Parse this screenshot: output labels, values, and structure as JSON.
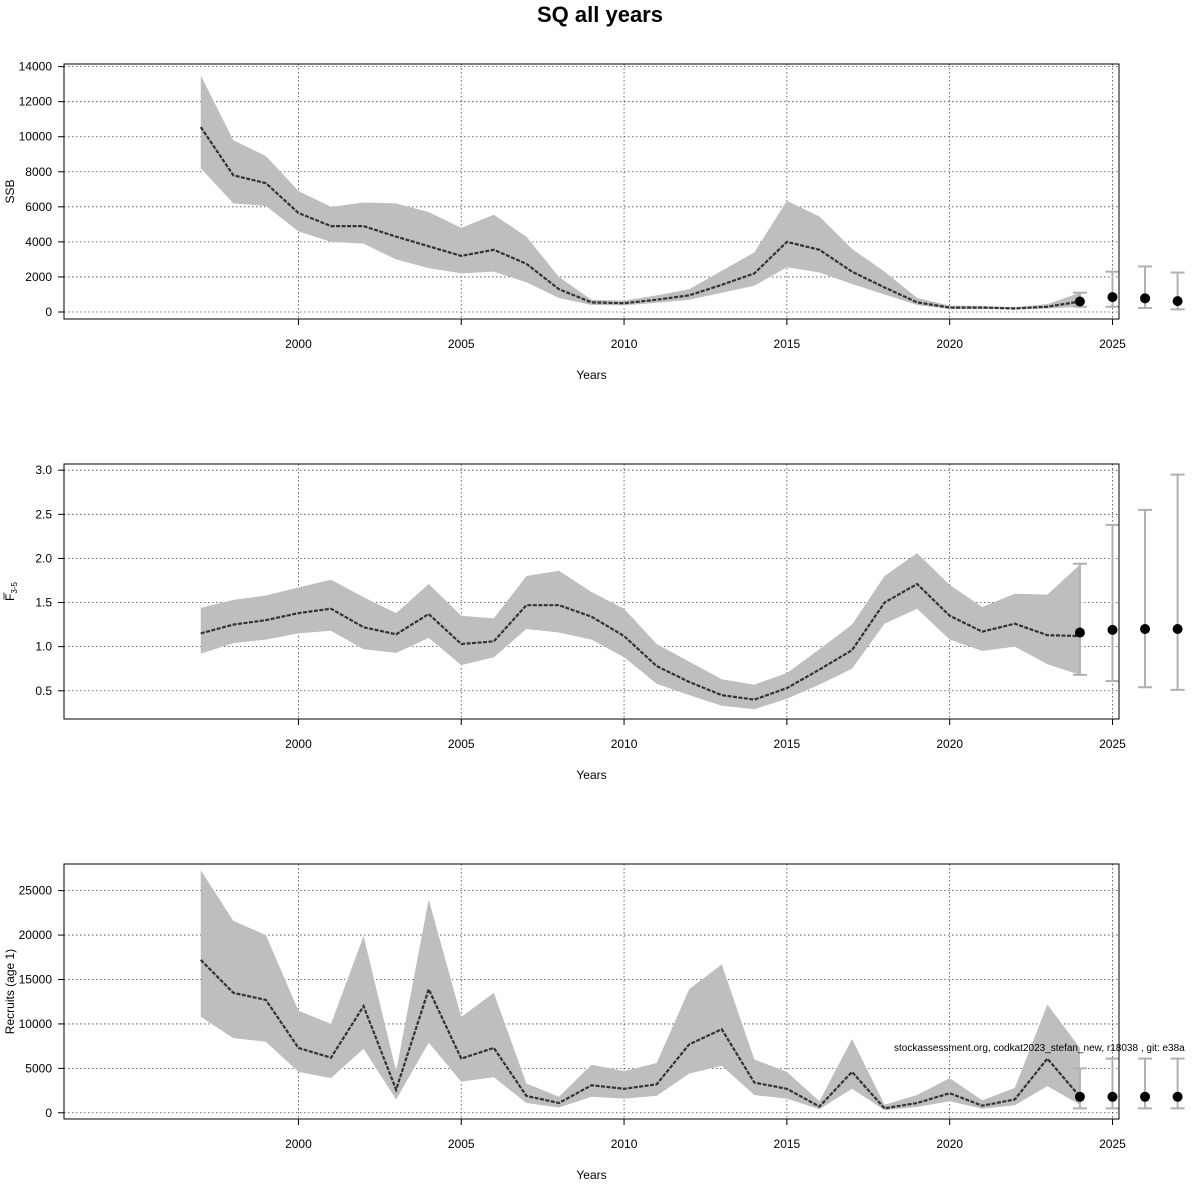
{
  "title": "SQ all years",
  "watermark": "stockassessment.org, codkat2023_stefan_new, r18038 , git: e38a",
  "colors": {
    "band": "#bebebe",
    "line": "#333333",
    "forecast_bar": "#b0b0b0",
    "grid": "#444444",
    "point": "#000000"
  },
  "chart_data": [
    {
      "type": "line",
      "ylabel": "SSB",
      "xlabel": "Years",
      "xlim": [
        1992.8,
        2025.2
      ],
      "ylim": [
        -400,
        14150
      ],
      "x_ticks": [
        2000,
        2005,
        2010,
        2015,
        2020,
        2025
      ],
      "y_ticks": [
        0,
        2000,
        4000,
        6000,
        8000,
        10000,
        12000,
        14000
      ],
      "y_tick_labels": [
        "0",
        "2000",
        "4000",
        "6000",
        "8000",
        "10000",
        "12000",
        "14000"
      ],
      "grid": true,
      "x": [
        1997,
        1998,
        1999,
        2000,
        2001,
        2002,
        2003,
        2004,
        2005,
        2006,
        2007,
        2008,
        2009,
        2010,
        2011,
        2012,
        2013,
        2014,
        2015,
        2016,
        2017,
        2018,
        2019,
        2020,
        2021,
        2022,
        2023,
        2024
      ],
      "estimate": [
        10550,
        7800,
        7350,
        5650,
        4900,
        4900,
        4300,
        3750,
        3200,
        3550,
        2750,
        1300,
        550,
        500,
        700,
        950,
        1550,
        2200,
        4000,
        3550,
        2300,
        1400,
        550,
        250,
        250,
        200,
        300,
        600
      ],
      "lower": [
        8200,
        6200,
        6050,
        4600,
        4000,
        3900,
        3000,
        2500,
        2200,
        2300,
        1700,
        800,
        400,
        380,
        530,
        700,
        1100,
        1500,
        2550,
        2250,
        1600,
        1000,
        400,
        170,
        180,
        150,
        200,
        300
      ],
      "upper": [
        13500,
        9800,
        8900,
        6900,
        6000,
        6250,
        6200,
        5700,
        4800,
        5550,
        4300,
        2000,
        700,
        650,
        950,
        1300,
        2350,
        3400,
        6350,
        5450,
        3600,
        2300,
        800,
        360,
        350,
        280,
        450,
        1100
      ],
      "forecast": [
        {
          "year": 2024,
          "value": 600,
          "low": 300,
          "high": 1100
        },
        {
          "year": 2025,
          "value": 850,
          "low": 300,
          "high": 2300
        },
        {
          "year": 2026,
          "value": 780,
          "low": 230,
          "high": 2600
        },
        {
          "year": 2027,
          "value": 620,
          "low": 150,
          "high": 2250
        }
      ]
    },
    {
      "type": "line",
      "ylabel_main": "F",
      "ylabel_sub": "3-5",
      "xlabel": "Years",
      "xlim": [
        1992.8,
        2025.2
      ],
      "ylim": [
        0.18,
        3.07
      ],
      "x_ticks": [
        2000,
        2005,
        2010,
        2015,
        2020,
        2025
      ],
      "y_ticks": [
        0.5,
        1.0,
        1.5,
        2.0,
        2.5,
        3.0
      ],
      "y_tick_labels": [
        "0.5",
        "1.0",
        "1.5",
        "2.0",
        "2.5",
        "3.0"
      ],
      "grid": true,
      "x": [
        1997,
        1998,
        1999,
        2000,
        2001,
        2002,
        2003,
        2004,
        2005,
        2006,
        2007,
        2008,
        2009,
        2010,
        2011,
        2012,
        2013,
        2014,
        2015,
        2016,
        2017,
        2018,
        2019,
        2020,
        2021,
        2022,
        2023,
        2024
      ],
      "estimate": [
        1.15,
        1.25,
        1.3,
        1.38,
        1.43,
        1.22,
        1.14,
        1.37,
        1.03,
        1.06,
        1.47,
        1.47,
        1.34,
        1.12,
        0.78,
        0.6,
        0.45,
        0.4,
        0.53,
        0.74,
        0.96,
        1.5,
        1.71,
        1.35,
        1.17,
        1.26,
        1.13,
        1.12
      ],
      "lower": [
        0.92,
        1.04,
        1.08,
        1.15,
        1.18,
        0.97,
        0.93,
        1.1,
        0.79,
        0.88,
        1.2,
        1.16,
        1.08,
        0.88,
        0.58,
        0.45,
        0.33,
        0.29,
        0.41,
        0.57,
        0.75,
        1.26,
        1.43,
        1.08,
        0.95,
        1.0,
        0.8,
        0.68
      ],
      "upper": [
        1.44,
        1.53,
        1.58,
        1.67,
        1.76,
        1.56,
        1.38,
        1.71,
        1.35,
        1.32,
        1.8,
        1.86,
        1.62,
        1.43,
        1.03,
        0.83,
        0.63,
        0.57,
        0.7,
        0.97,
        1.25,
        1.8,
        2.06,
        1.7,
        1.45,
        1.6,
        1.59,
        1.93
      ],
      "forecast": [
        {
          "year": 2024,
          "value": 1.16,
          "low": 0.68,
          "high": 1.94
        },
        {
          "year": 2025,
          "value": 1.19,
          "low": 0.61,
          "high": 2.38
        },
        {
          "year": 2026,
          "value": 1.2,
          "low": 0.54,
          "high": 2.55
        },
        {
          "year": 2027,
          "value": 1.2,
          "low": 0.51,
          "high": 2.95
        }
      ]
    },
    {
      "type": "line",
      "ylabel": "Recruits (age 1)",
      "xlabel": "Years",
      "xlim": [
        1992.8,
        2025.2
      ],
      "ylim": [
        -700,
        28000
      ],
      "x_ticks": [
        2000,
        2005,
        2010,
        2015,
        2020,
        2025
      ],
      "y_ticks": [
        0,
        5000,
        10000,
        15000,
        20000,
        25000
      ],
      "y_tick_labels": [
        "0",
        "5000",
        "10000",
        "15000",
        "20000",
        "25000"
      ],
      "grid": true,
      "x": [
        1997,
        1998,
        1999,
        2000,
        2001,
        2002,
        2003,
        2004,
        2005,
        2006,
        2007,
        2008,
        2009,
        2010,
        2011,
        2012,
        2013,
        2014,
        2015,
        2016,
        2017,
        2018,
        2019,
        2020,
        2021,
        2022,
        2023,
        2024
      ],
      "estimate": [
        17200,
        13500,
        12700,
        7300,
        6200,
        12000,
        2600,
        13900,
        6100,
        7300,
        1900,
        1100,
        3100,
        2700,
        3200,
        7700,
        9400,
        3400,
        2700,
        700,
        4600,
        500,
        1100,
        2200,
        800,
        1500,
        6100,
        1800
      ],
      "lower": [
        10800,
        8400,
        8000,
        4600,
        3900,
        7200,
        1500,
        7900,
        3500,
        4000,
        1100,
        600,
        1800,
        1600,
        1900,
        4400,
        5300,
        2000,
        1600,
        400,
        2700,
        300,
        650,
        1300,
        450,
        850,
        3000,
        900
      ],
      "upper": [
        27300,
        21600,
        20000,
        11500,
        10000,
        19900,
        4700,
        24000,
        10800,
        13500,
        3300,
        1800,
        5400,
        4700,
        5600,
        13900,
        16700,
        6000,
        4600,
        1300,
        8300,
        900,
        2000,
        3900,
        1400,
        2800,
        12200,
        7300
      ],
      "forecast": [
        {
          "year": 2024,
          "value": 1800,
          "low": 500,
          "high": 5000
        },
        {
          "year": 2025,
          "value": 1800,
          "low": 500,
          "high": 6100
        },
        {
          "year": 2026,
          "value": 1800,
          "low": 500,
          "high": 6100
        },
        {
          "year": 2027,
          "value": 1800,
          "low": 500,
          "high": 6100
        }
      ]
    }
  ]
}
